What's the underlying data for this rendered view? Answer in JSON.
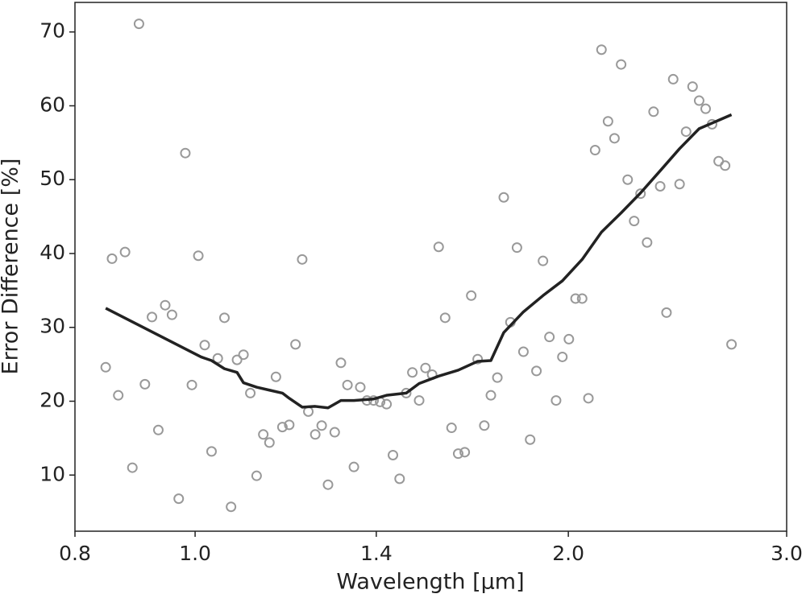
{
  "chart_data": {
    "type": "scatter",
    "xlabel": "Wavelength [μm]",
    "ylabel": "Error Difference [%]",
    "xscale": "log",
    "xlim": [
      0.8,
      3.0
    ],
    "xticks": [
      0.8,
      {
        "value": 1,
        "label": "1.0"
      },
      1.4,
      {
        "value": 2,
        "label": "2.0"
      },
      {
        "value": 3,
        "label": "3.0"
      }
    ],
    "ylim": [
      2.4,
      74
    ],
    "yticks": [
      10,
      20,
      30,
      40,
      50,
      60,
      70
    ],
    "series": [
      {
        "type": "scatter",
        "color": "#999999",
        "x": [
          0.847,
          0.857,
          0.867,
          0.878,
          0.89,
          0.901,
          0.911,
          0.923,
          0.934,
          0.946,
          0.958,
          0.97,
          0.982,
          0.994,
          1.006,
          1.018,
          1.031,
          1.043,
          1.056,
          1.069,
          1.081,
          1.094,
          1.108,
          1.121,
          1.135,
          1.148,
          1.162,
          1.176,
          1.191,
          1.205,
          1.22,
          1.234,
          1.25,
          1.265,
          1.28,
          1.296,
          1.311,
          1.327,
          1.343,
          1.359,
          1.376,
          1.393,
          1.41,
          1.427,
          1.444,
          1.462,
          1.48,
          1.497,
          1.516,
          1.534,
          1.553,
          1.572,
          1.591,
          1.61,
          1.63,
          1.65,
          1.67,
          1.69,
          1.711,
          1.732,
          1.753,
          1.774,
          1.796,
          1.818,
          1.84,
          1.863,
          1.885,
          1.908,
          1.931,
          1.955,
          1.978,
          2.002,
          2.027,
          2.052,
          2.076,
          2.102,
          2.127,
          2.153,
          2.179,
          2.206,
          2.233,
          2.26,
          2.287,
          2.315,
          2.343,
          2.372,
          2.4,
          2.43,
          2.459,
          2.489,
          2.519,
          2.55,
          2.581,
          2.612,
          2.644,
          2.676,
          2.708
        ],
        "values": [
          24.6,
          39.3,
          20.8,
          40.2,
          11.0,
          71.1,
          22.3,
          31.4,
          16.1,
          33.0,
          31.7,
          6.8,
          53.6,
          22.2,
          39.7,
          27.6,
          13.2,
          25.8,
          31.3,
          5.7,
          25.6,
          26.3,
          21.1,
          9.9,
          15.5,
          14.4,
          23.3,
          16.5,
          16.8,
          27.7,
          39.2,
          18.6,
          15.5,
          16.7,
          8.7,
          15.8,
          25.2,
          22.2,
          11.1,
          21.9,
          20.1,
          20.1,
          19.9,
          19.6,
          12.7,
          9.5,
          21.1,
          23.9,
          20.1,
          24.5,
          23.6,
          40.9,
          31.3,
          16.4,
          12.9,
          13.1,
          34.3,
          25.7,
          16.7,
          20.8,
          23.2,
          47.6,
          30.7,
          40.8,
          26.7,
          14.8,
          24.1,
          39.0,
          28.7,
          20.1,
          26.0,
          28.4,
          33.9,
          33.9,
          20.4,
          54.0,
          67.6,
          57.9,
          55.6,
          65.6,
          50.0,
          44.4,
          48.1,
          41.5,
          59.2,
          49.1,
          32.0,
          63.6,
          49.4,
          56.5,
          62.6,
          60.7,
          59.6,
          57.5,
          52.5,
          51.9,
          27.7
        ]
      },
      {
        "type": "line",
        "color": "#222222",
        "x": [
          0.847,
          1.011,
          1.031,
          1.056,
          1.081,
          1.094,
          1.121,
          1.148,
          1.176,
          1.191,
          1.22,
          1.25,
          1.28,
          1.311,
          1.343,
          1.393,
          1.427,
          1.48,
          1.516,
          1.572,
          1.63,
          1.69,
          1.732,
          1.774,
          1.84,
          1.908,
          1.978,
          2.052,
          2.127,
          2.206,
          2.287,
          2.372,
          2.459,
          2.55,
          2.708
        ],
        "values": [
          32.6,
          26.0,
          25.5,
          24.4,
          23.9,
          22.5,
          21.9,
          21.5,
          21.1,
          20.4,
          19.2,
          19.3,
          19.1,
          20.1,
          20.1,
          20.3,
          20.8,
          21.1,
          22.4,
          23.4,
          24.2,
          25.4,
          25.5,
          29.3,
          32.1,
          34.3,
          36.3,
          39.2,
          42.9,
          45.5,
          48.2,
          51.2,
          54.2,
          56.9,
          58.8
        ]
      }
    ]
  }
}
